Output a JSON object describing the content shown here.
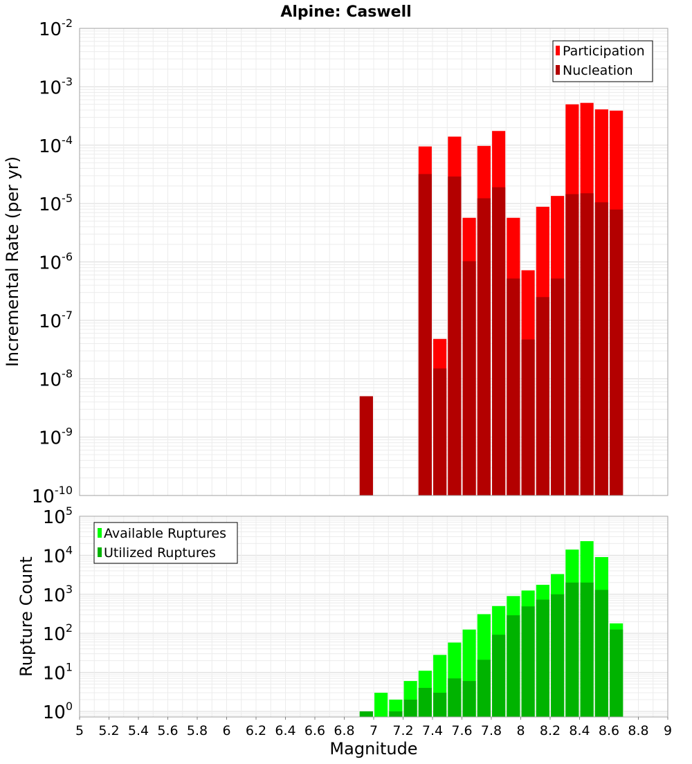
{
  "chart_data": [
    {
      "type": "bar",
      "title": "Alpine: Caswell",
      "ylabel": "Incremental Rate (per yr)",
      "xlabel": "",
      "yscale": "log",
      "ylim": [
        1e-10,
        0.01
      ],
      "xlim": [
        5,
        9
      ],
      "y_tick_exponents": [
        -10,
        -9,
        -8,
        -7,
        -6,
        -5,
        -4,
        -3,
        -2
      ],
      "y_tick_base": "10",
      "grid": true,
      "legend_position": "top-right",
      "bar_width": 0.09,
      "x": [
        6.95,
        7.05,
        7.15,
        7.25,
        7.35,
        7.45,
        7.55,
        7.65,
        7.75,
        7.85,
        7.95,
        8.05,
        8.15,
        8.25,
        8.35,
        8.45,
        8.55,
        8.65
      ],
      "series": [
        {
          "name": "Participation",
          "color": "#ff0000",
          "values": [
            5e-09,
            null,
            null,
            null,
            9.5e-05,
            4.8e-08,
            0.00014,
            5.7e-06,
            9.7e-05,
            0.000175,
            5.7e-06,
            7.2e-07,
            8.8e-06,
            1.35e-05,
            0.0005,
            0.00053,
            0.00041,
            0.00039
          ]
        },
        {
          "name": "Nucleation",
          "color": "#b30000",
          "values": [
            5e-09,
            null,
            null,
            null,
            3.2e-05,
            1.5e-08,
            2.9e-05,
            1.03e-06,
            1.23e-05,
            1.9e-05,
            5.2e-07,
            4.7e-08,
            2.5e-07,
            5.2e-07,
            1.45e-05,
            1.5e-05,
            1.05e-05,
            7.9e-06
          ]
        }
      ]
    },
    {
      "type": "bar",
      "title": "",
      "ylabel": "Rupture Count",
      "xlabel": "Magnitude",
      "yscale": "log",
      "ylim": [
        0.72,
        100000
      ],
      "xlim": [
        5,
        9
      ],
      "y_tick_exponents": [
        0,
        1,
        2,
        3,
        4,
        5
      ],
      "y_tick_base": "10",
      "x_ticks": [
        "5",
        "5.2",
        "5.4",
        "5.6",
        "5.8",
        "6",
        "6.2",
        "6.4",
        "6.6",
        "6.8",
        "7",
        "7.2",
        "7.4",
        "7.6",
        "7.8",
        "8",
        "8.2",
        "8.4",
        "8.6",
        "8.8",
        "9"
      ],
      "grid": true,
      "legend_position": "top-left",
      "bar_width": 0.09,
      "x": [
        6.95,
        7.05,
        7.15,
        7.25,
        7.35,
        7.45,
        7.55,
        7.65,
        7.75,
        7.85,
        7.95,
        8.05,
        8.15,
        8.25,
        8.35,
        8.45,
        8.55,
        8.65
      ],
      "series": [
        {
          "name": "Available Ruptures",
          "color": "#00ff00",
          "values": [
            1,
            3,
            2,
            6,
            11,
            28,
            58,
            125,
            310,
            500,
            900,
            1250,
            1750,
            3300,
            14000,
            23000,
            9000,
            180
          ]
        },
        {
          "name": "Utilized Ruptures",
          "color": "#00b300",
          "values": [
            1,
            null,
            1,
            2,
            4,
            3,
            7,
            6,
            21,
            92,
            290,
            490,
            730,
            1000,
            2000,
            2000,
            1300,
            125
          ]
        }
      ]
    }
  ]
}
